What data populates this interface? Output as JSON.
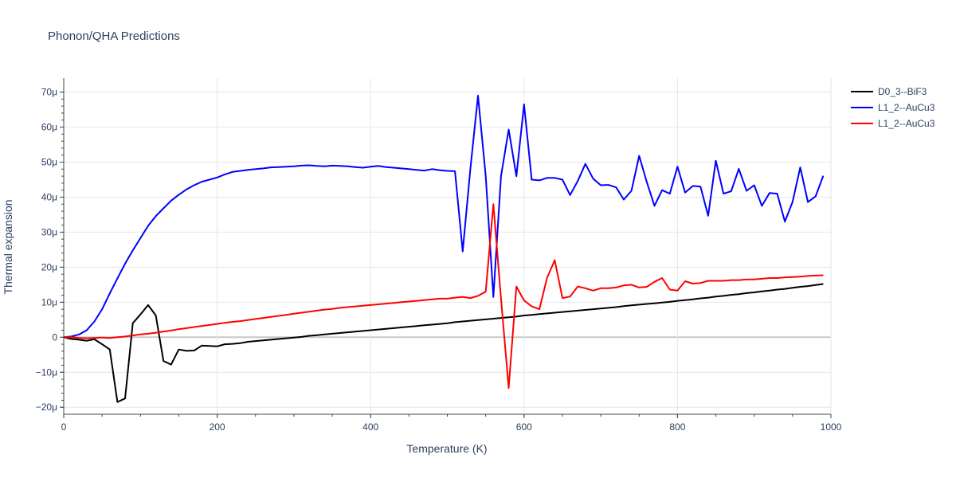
{
  "chart_data": {
    "type": "line",
    "title": "Phonon/QHA Predictions",
    "xlabel": "Temperature (K)",
    "ylabel": "Thermal expansion",
    "xlim": [
      0,
      1000
    ],
    "ylim": [
      -22,
      74
    ],
    "x_ticks": [
      0,
      200,
      400,
      600,
      800,
      1000
    ],
    "y_ticks": [
      -20,
      -10,
      0,
      10,
      20,
      30,
      40,
      50,
      60,
      70
    ],
    "y_tick_labels": [
      "−20μ",
      "−10μ",
      "0",
      "10μ",
      "20μ",
      "30μ",
      "40μ",
      "50μ",
      "60μ",
      "70μ"
    ],
    "grid": true,
    "legend_position": "top-right",
    "series": [
      {
        "name": "D0_3--BiF3",
        "color": "#000000",
        "x": [
          0,
          10,
          20,
          30,
          40,
          50,
          60,
          70,
          80,
          90,
          100,
          110,
          120,
          130,
          140,
          150,
          160,
          170,
          180,
          190,
          200,
          210,
          220,
          230,
          240,
          250,
          260,
          270,
          280,
          290,
          300,
          310,
          320,
          330,
          340,
          350,
          360,
          370,
          380,
          390,
          400,
          410,
          420,
          430,
          440,
          450,
          460,
          470,
          480,
          490,
          500,
          510,
          520,
          530,
          540,
          550,
          560,
          570,
          580,
          590,
          600,
          610,
          620,
          630,
          640,
          650,
          660,
          670,
          680,
          690,
          700,
          710,
          720,
          730,
          740,
          750,
          760,
          770,
          780,
          790,
          800,
          810,
          820,
          830,
          840,
          850,
          860,
          870,
          880,
          890,
          900,
          910,
          920,
          930,
          940,
          950,
          960,
          970,
          980,
          990
        ],
        "y": [
          0,
          -0.5,
          -0.7,
          -1.0,
          -0.6,
          -2.0,
          -3.5,
          -18.5,
          -17.5,
          4.0,
          6.5,
          9.2,
          6.2,
          -6.8,
          -7.8,
          -3.5,
          -3.9,
          -3.8,
          -2.4,
          -2.5,
          -2.6,
          -2.0,
          -1.9,
          -1.7,
          -1.3,
          -1.1,
          -0.9,
          -0.7,
          -0.5,
          -0.3,
          -0.1,
          0.1,
          0.4,
          0.6,
          0.8,
          1.0,
          1.2,
          1.4,
          1.6,
          1.8,
          2.0,
          2.2,
          2.4,
          2.6,
          2.8,
          3.0,
          3.2,
          3.4,
          3.6,
          3.8,
          4.0,
          4.3,
          4.5,
          4.7,
          4.9,
          5.1,
          5.3,
          5.5,
          5.7,
          5.9,
          6.2,
          6.4,
          6.6,
          6.8,
          7.0,
          7.2,
          7.4,
          7.6,
          7.8,
          8.0,
          8.2,
          8.4,
          8.6,
          8.9,
          9.1,
          9.3,
          9.5,
          9.7,
          9.9,
          10.1,
          10.4,
          10.6,
          10.8,
          11.1,
          11.3,
          11.6,
          11.8,
          12.1,
          12.3,
          12.6,
          12.8,
          13.1,
          13.3,
          13.6,
          13.8,
          14.1,
          14.4,
          14.6,
          14.9,
          15.2
        ]
      },
      {
        "name": "L1_2--AuCu3",
        "color": "#0000ff",
        "x": [
          0,
          10,
          20,
          30,
          40,
          50,
          60,
          70,
          80,
          90,
          100,
          110,
          120,
          130,
          140,
          150,
          160,
          170,
          180,
          190,
          200,
          210,
          220,
          230,
          240,
          250,
          260,
          270,
          280,
          290,
          300,
          310,
          320,
          330,
          340,
          350,
          360,
          370,
          380,
          390,
          400,
          410,
          420,
          430,
          440,
          450,
          460,
          470,
          480,
          490,
          500,
          510,
          520,
          530,
          540,
          550,
          560,
          570,
          580,
          590,
          600,
          610,
          620,
          630,
          640,
          650,
          660,
          670,
          680,
          690,
          700,
          710,
          720,
          730,
          740,
          750,
          760,
          770,
          780,
          790,
          800,
          810,
          820,
          830,
          840,
          850,
          860,
          870,
          880,
          890,
          900,
          910,
          920,
          930,
          940,
          950,
          960,
          970,
          980,
          990
        ],
        "y": [
          0,
          0.2,
          0.8,
          2.0,
          4.5,
          8.0,
          12.5,
          16.8,
          21.0,
          24.8,
          28.3,
          31.8,
          34.6,
          36.8,
          39.0,
          40.7,
          42.2,
          43.4,
          44.4,
          45.0,
          45.6,
          46.5,
          47.2,
          47.5,
          47.8,
          48.0,
          48.2,
          48.5,
          48.6,
          48.7,
          48.8,
          49.0,
          49.1,
          48.9,
          48.8,
          49.0,
          48.9,
          48.8,
          48.6,
          48.4,
          48.7,
          48.9,
          48.6,
          48.4,
          48.2,
          48.0,
          47.8,
          47.6,
          48.0,
          47.7,
          47.5,
          47.4,
          24.5,
          48.0,
          69.0,
          46.0,
          11.5,
          46.0,
          59.3,
          46.0,
          66.5,
          45.0,
          44.8,
          45.5,
          45.5,
          45.0,
          40.6,
          44.6,
          49.5,
          45.3,
          43.4,
          43.5,
          42.8,
          39.3,
          41.8,
          51.8,
          44.3,
          37.5,
          42.0,
          41.0,
          48.7,
          41.3,
          43.2,
          43.0,
          34.7,
          50.4,
          41.0,
          41.7,
          48.1,
          41.8,
          43.4,
          37.5,
          41.2,
          41.0,
          33.0,
          38.6,
          48.5,
          38.6,
          40.2,
          46.1
        ]
      },
      {
        "name": "L1_2--AuCu3",
        "color": "#ff0000",
        "x": [
          0,
          10,
          20,
          30,
          40,
          50,
          60,
          70,
          80,
          90,
          100,
          110,
          120,
          130,
          140,
          150,
          160,
          170,
          180,
          190,
          200,
          210,
          220,
          230,
          240,
          250,
          260,
          270,
          280,
          290,
          300,
          310,
          320,
          330,
          340,
          350,
          360,
          370,
          380,
          390,
          400,
          410,
          420,
          430,
          440,
          450,
          460,
          470,
          480,
          490,
          500,
          510,
          520,
          530,
          540,
          550,
          560,
          570,
          580,
          590,
          600,
          610,
          620,
          630,
          640,
          650,
          660,
          670,
          680,
          690,
          700,
          710,
          720,
          730,
          740,
          750,
          760,
          770,
          780,
          790,
          800,
          810,
          820,
          830,
          840,
          850,
          860,
          870,
          880,
          890,
          900,
          910,
          920,
          930,
          940,
          950,
          960,
          970,
          980,
          990
        ],
        "y": [
          0,
          0,
          -0.2,
          -0.3,
          -0.2,
          -0.1,
          -0.2,
          0.0,
          0.2,
          0.5,
          0.8,
          1.0,
          1.3,
          1.6,
          1.9,
          2.3,
          2.6,
          2.9,
          3.2,
          3.5,
          3.8,
          4.1,
          4.4,
          4.6,
          4.9,
          5.2,
          5.5,
          5.8,
          6.1,
          6.4,
          6.7,
          7.0,
          7.3,
          7.6,
          7.9,
          8.1,
          8.4,
          8.6,
          8.8,
          9.0,
          9.2,
          9.4,
          9.6,
          9.8,
          10.0,
          10.2,
          10.4,
          10.6,
          10.8,
          11.0,
          11.0,
          11.3,
          11.5,
          11.2,
          11.8,
          13.0,
          38.0,
          11.0,
          -14.5,
          14.5,
          10.5,
          8.8,
          8.0,
          17.0,
          22.0,
          11.2,
          11.6,
          14.5,
          14.0,
          13.3,
          14.0,
          14.0,
          14.2,
          14.8,
          15.0,
          14.2,
          14.4,
          15.8,
          16.9,
          13.6,
          13.3,
          16.0,
          15.3,
          15.5,
          16.1,
          16.1,
          16.1,
          16.3,
          16.3,
          16.5,
          16.5,
          16.7,
          16.9,
          16.9,
          17.1,
          17.2,
          17.3,
          17.5,
          17.6,
          17.7
        ]
      }
    ]
  }
}
